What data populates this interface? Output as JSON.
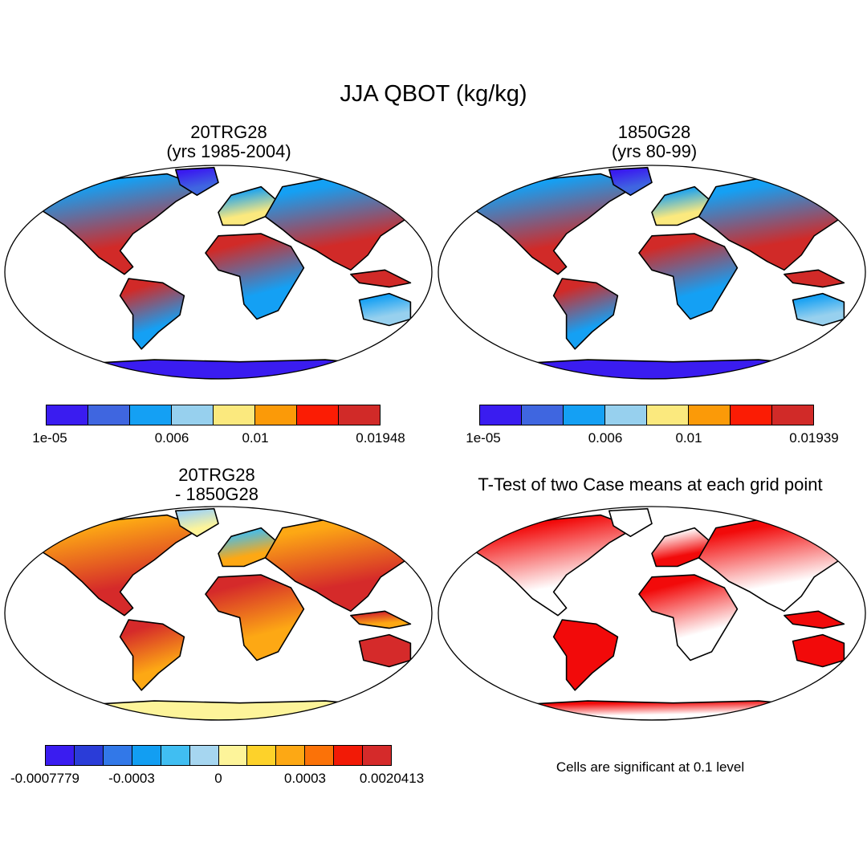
{
  "title": "JJA QBOT (kg/kg)",
  "panels": {
    "p1": {
      "title_line1": "20TRG28",
      "title_line2": "(yrs 1985-2004)"
    },
    "p2": {
      "title_line1": "1850G28",
      "title_line2": "(yrs 80-99)"
    },
    "p3": {
      "title_line1": "20TRG28",
      "title_line2": "- 1850G28"
    },
    "p4": {
      "title": "T-Test of two Case means at each grid point",
      "note": "Cells are significant at 0.1 level"
    }
  },
  "colorbars": {
    "cb1": {
      "colors": [
        "#3a1cf0",
        "#3f66e0",
        "#14a0f4",
        "#97d0ee",
        "#fbe97e",
        "#fb9a08",
        "#fb1c04",
        "#d12a28"
      ],
      "labels": [
        "1e-05",
        "0.006",
        "0.01",
        "0.01948"
      ]
    },
    "cb2": {
      "colors": [
        "#3a1cf0",
        "#3f66e0",
        "#14a0f4",
        "#97d0ee",
        "#fbe97e",
        "#fb9a08",
        "#fb1c04",
        "#d12a28"
      ],
      "labels": [
        "1e-05",
        "0.006",
        "0.01",
        "0.01939"
      ]
    },
    "cb3": {
      "colors": [
        "#3a1cf0",
        "#2a3cd8",
        "#3278e8",
        "#129ef2",
        "#40bef2",
        "#a6d6f0",
        "#fdf49a",
        "#fdd22a",
        "#fda814",
        "#fb7208",
        "#f21a06",
        "#d52a2a"
      ],
      "labels": [
        "-0.0007779",
        "-0.0003",
        "0",
        "0.0003",
        "0.0020413"
      ]
    }
  },
  "colors": {
    "ttest_significant": "#f20a0a",
    "ocean": "#ffffff",
    "coast": "#000000"
  }
}
